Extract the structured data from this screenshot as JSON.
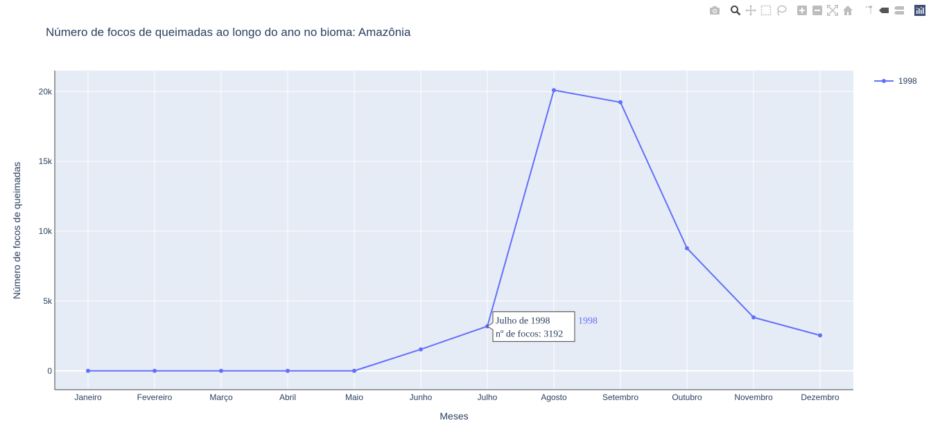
{
  "modebar": {
    "icons": [
      "camera-icon",
      "zoom-icon",
      "pan-icon",
      "box-select-icon",
      "lasso-select-icon",
      "zoom-in-icon",
      "zoom-out-icon",
      "autoscale-icon",
      "reset-axes-icon",
      "spike-lines-icon",
      "hover-closest-icon",
      "hover-compare-icon",
      "plotly-logo-icon"
    ]
  },
  "colors": {
    "series": "#636efa",
    "plot_bg": "#e5ecf6",
    "grid": "#ffffff",
    "text": "#2a3f5f"
  },
  "chart_data": {
    "type": "line",
    "title": "Número de focos de queimadas ao longo do ano no bioma: Amazônia",
    "xlabel": "Meses",
    "ylabel": "Número de focos de queimadas",
    "categories": [
      "Janeiro",
      "Fevereiro",
      "Março",
      "Abril",
      "Maio",
      "Junho",
      "Julho",
      "Agosto",
      "Setembro",
      "Outubro",
      "Novembro",
      "Dezembro"
    ],
    "series": [
      {
        "name": "1998",
        "values": [
          0,
          0,
          0,
          0,
          0,
          1540,
          3192,
          20100,
          19230,
          8780,
          3830,
          2540
        ]
      }
    ],
    "ylim": [
      -1350,
      21500
    ],
    "yticks": [
      0,
      5000,
      10000,
      15000,
      20000
    ],
    "ytick_labels": [
      "0",
      "5k",
      "10k",
      "15k",
      "20k"
    ],
    "grid": true,
    "legend_placement": "top-right",
    "hover": {
      "category": "Julho",
      "series": "1998",
      "line1": "Julho de 1998",
      "line2": "nº de focos: 3192",
      "series_label": "1998"
    }
  }
}
